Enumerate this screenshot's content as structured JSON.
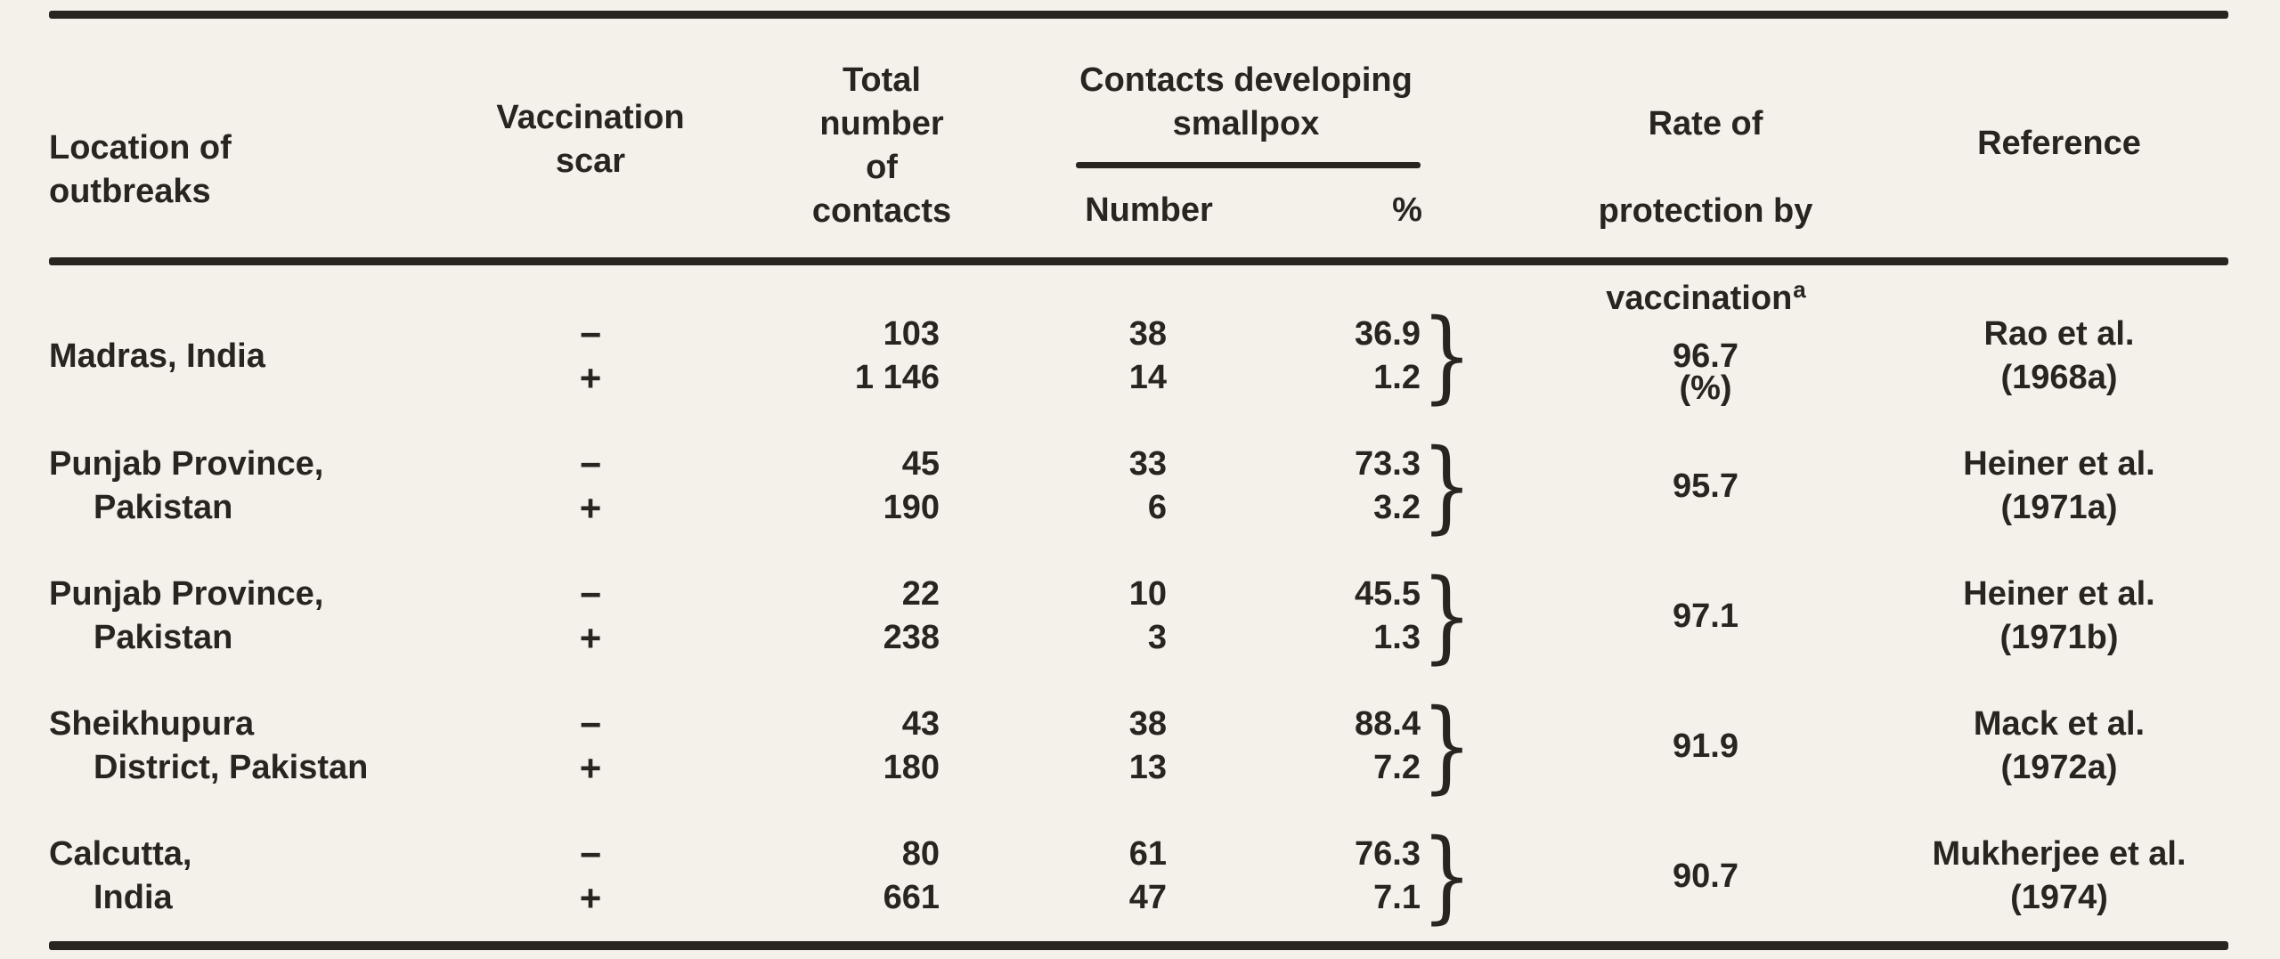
{
  "colors": {
    "paper": "#f3f1ea",
    "ink": "#282420"
  },
  "header": {
    "location": "Location of\noutbreaks",
    "vaccination_scar": "Vaccination\nscar",
    "total_contacts": "Total\nnumber\nof\ncontacts",
    "contacts_developing": "Contacts developing\nsmallpox",
    "number": "Number",
    "percent": "%",
    "rate_line1": "Rate of",
    "rate_line2": "protection by",
    "rate_line3": "vaccination",
    "rate_footnote_marker": "a",
    "rate_line4": "(%)",
    "reference": "Reference"
  },
  "glyphs": {
    "brace": "}",
    "scar_negative": "−",
    "scar_positive": "+"
  },
  "rows": [
    {
      "location_line1": "Madras, India",
      "location_line2": "",
      "total_neg": "103",
      "total_pos": "1 146",
      "number_neg": "38",
      "number_pos": "14",
      "pct_neg": "36.9",
      "pct_pos": "1.2",
      "rate": "96.7",
      "ref_line1": "Rao et al.",
      "ref_line2": "(1968a)"
    },
    {
      "location_line1": "Punjab Province,",
      "location_line2": "Pakistan",
      "total_neg": "45",
      "total_pos": "190",
      "number_neg": "33",
      "number_pos": "6",
      "pct_neg": "73.3",
      "pct_pos": "3.2",
      "rate": "95.7",
      "ref_line1": "Heiner et al.",
      "ref_line2": "(1971a)"
    },
    {
      "location_line1": "Punjab Province,",
      "location_line2": "Pakistan",
      "total_neg": "22",
      "total_pos": "238",
      "number_neg": "10",
      "number_pos": "3",
      "pct_neg": "45.5",
      "pct_pos": "1.3",
      "rate": "97.1",
      "ref_line1": "Heiner et al.",
      "ref_line2": "(1971b)"
    },
    {
      "location_line1": "Sheikhupura",
      "location_line2": "District, Pakistan",
      "total_neg": "43",
      "total_pos": "180",
      "number_neg": "38",
      "number_pos": "13",
      "pct_neg": "88.4",
      "pct_pos": "7.2",
      "rate": "91.9",
      "ref_line1": "Mack et al.",
      "ref_line2": "(1972a)"
    },
    {
      "location_line1": "Calcutta,",
      "location_line2": "India",
      "total_neg": "80",
      "total_pos": "661",
      "number_neg": "61",
      "number_pos": "47",
      "pct_neg": "76.3",
      "pct_pos": "7.1",
      "rate": "90.7",
      "ref_line1": "Mukherjee et al.",
      "ref_line2": "(1974)"
    }
  ]
}
